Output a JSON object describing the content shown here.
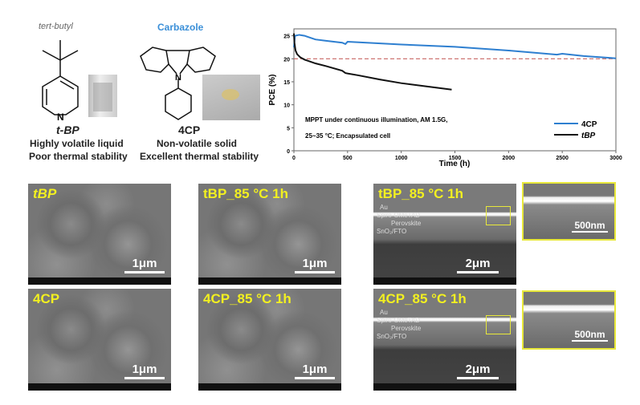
{
  "left_panel": {
    "tbp_group_label": "tert-butyl",
    "tbp_name": "t-BP",
    "tbp_desc1": "Highly volatile liquid",
    "tbp_desc2": "Poor thermal stability",
    "cp_group_label": "Carbazole",
    "cp_name": "4CP",
    "cp_desc1": "Non-volatile solid",
    "cp_desc2": "Excellent thermal stability",
    "atom_n": "N"
  },
  "chart_data": {
    "type": "line",
    "xlabel": "Time (h)",
    "ylabel": "PCE (%)",
    "xlim": [
      0,
      3000
    ],
    "ylim": [
      0,
      26.5
    ],
    "xticks": [
      0,
      500,
      1000,
      1500,
      2000,
      2500,
      3000
    ],
    "yticks": [
      0,
      5,
      10,
      15,
      20,
      25
    ],
    "reference_line": {
      "y": 20,
      "style": "dashed",
      "color": "#c0504d"
    },
    "annotation1": "MPPT under continuous illumination, AM 1.5G,",
    "annotation2": "25~35 °C; Encapsulated cell",
    "legend_position": "bottom-right",
    "series": [
      {
        "name": "4CP",
        "color": "#2e7fd0",
        "x": [
          0,
          10,
          50,
          100,
          200,
          300,
          450,
          480,
          500,
          1000,
          1500,
          2000,
          2450,
          2500,
          2700,
          3000
        ],
        "y": [
          22.5,
          25,
          25.2,
          25,
          24.2,
          23.9,
          23.5,
          23.2,
          23.7,
          23.1,
          22.6,
          21.8,
          20.9,
          21.1,
          20.6,
          20.1
        ]
      },
      {
        "name": "tBP",
        "color": "#111111",
        "x": [
          0,
          5,
          15,
          30,
          60,
          100,
          200,
          300,
          450,
          480,
          500,
          600,
          800,
          1000,
          1200,
          1470
        ],
        "y": [
          25.5,
          23.5,
          21.8,
          21,
          20.3,
          19.8,
          19,
          18.4,
          17.4,
          16.9,
          16.8,
          16.4,
          15.5,
          14.7,
          14.1,
          13.3
        ]
      }
    ]
  },
  "sem": {
    "top_left": "tBP",
    "top_mid": "tBP_85 °C 1h",
    "top_right": "tBP_85 °C 1h",
    "bot_left": "4CP",
    "bot_mid": "4CP_85 °C 1h",
    "bot_right": "4CP_85 °C 1h",
    "scale_1um": "1μm",
    "scale_2um": "2μm",
    "scale_500nm": "500nm",
    "layers": [
      "Au",
      "Spiro-OMeTAD",
      "Perovskite",
      "SnO₂/FTO"
    ]
  }
}
